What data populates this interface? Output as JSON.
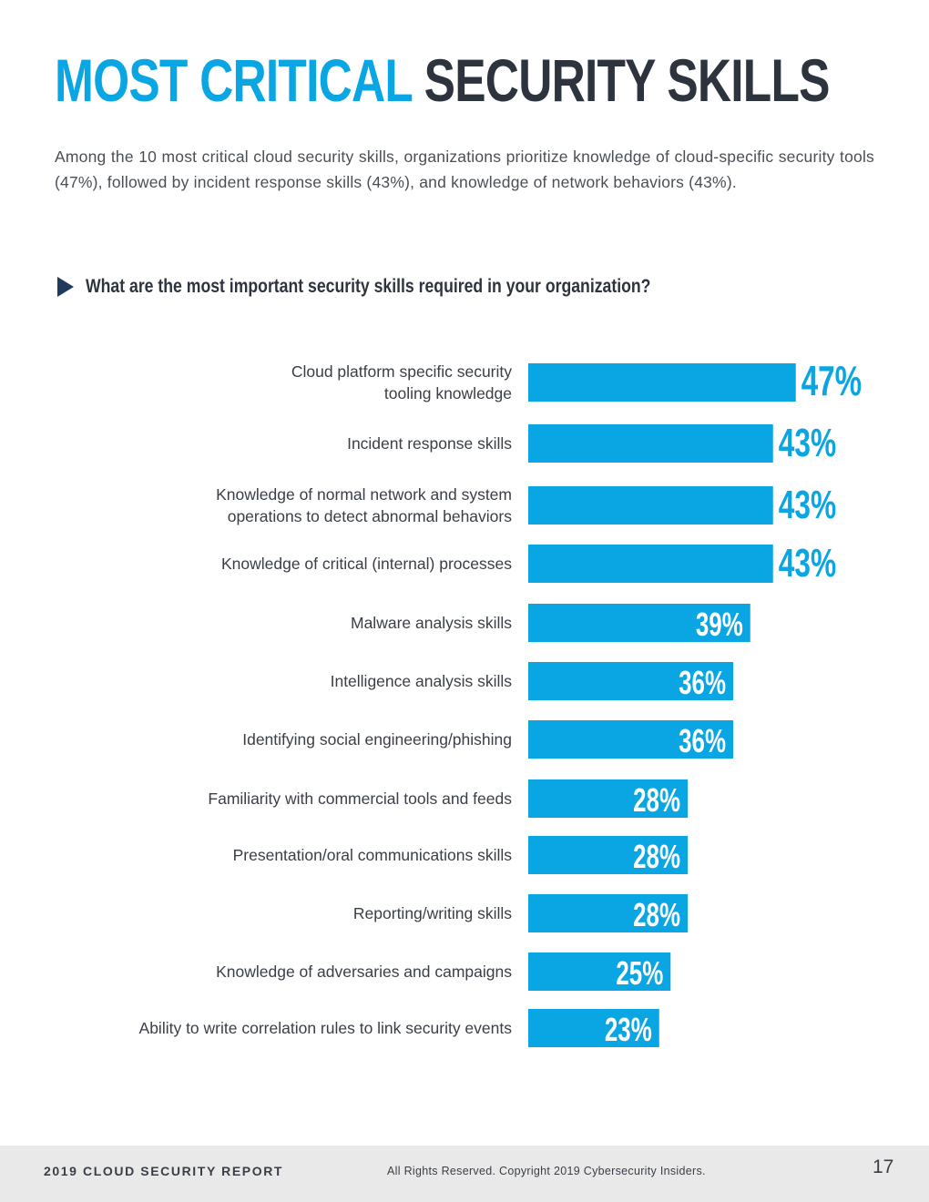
{
  "header": {
    "title_accent": "MOST CRITICAL",
    "title_rest": "SECURITY SKILLS",
    "intro": "Among the 10 most critical cloud security skills, organizations prioritize knowledge of cloud-specific security tools (47%), followed by incident response skills (43%), and  knowledge of network behaviors (43%)."
  },
  "question": {
    "text": "What are the most important security skills required in your organization?",
    "icon": "play-arrow-icon"
  },
  "chart_data": {
    "type": "bar",
    "orientation": "horizontal",
    "title": "What are the most important security skills required in your organization?",
    "categories": [
      [
        "Cloud platform specific security",
        "tooling knowledge"
      ],
      [
        "Incident response skills"
      ],
      [
        "Knowledge of normal network and system",
        "operations to detect abnormal behaviors"
      ],
      [
        "Knowledge of critical (internal) processes"
      ],
      [
        "Malware analysis skills"
      ],
      [
        "Intelligence analysis skills"
      ],
      [
        "Identifying social engineering/phishing"
      ],
      [
        "Familiarity with commercial tools and feeds"
      ],
      [
        "Presentation/oral communications skills"
      ],
      [
        "Reporting/writing skills"
      ],
      [
        "Knowledge of adversaries and campaigns"
      ],
      [
        "Ability to write correlation rules to link security events"
      ]
    ],
    "values": [
      47,
      43,
      43,
      43,
      39,
      36,
      36,
      28,
      28,
      28,
      25,
      23
    ],
    "value_labels": [
      "47%",
      "43%",
      "43%",
      "43%",
      "39%",
      "36%",
      "36%",
      "28%",
      "28%",
      "28%",
      "25%",
      "23%"
    ],
    "unit": "%",
    "bar_color": "#0aa6e3",
    "label_color_outside": "#0aa6e3",
    "label_color_inside": "#ffffff"
  },
  "footer": {
    "report": "2019 CLOUD SECURITY REPORT",
    "copyright": "All Rights Reserved. Copyright 2019 Cybersecurity Insiders.",
    "page": "17"
  }
}
